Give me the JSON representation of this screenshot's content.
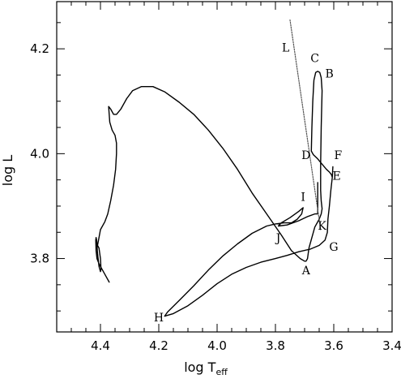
{
  "chart_data": {
    "type": "line",
    "xlabel_main": "log T",
    "xlabel_sub": "eff",
    "ylabel": "log L",
    "xlim": [
      4.55,
      3.4
    ],
    "ylim": [
      3.66,
      4.29
    ],
    "x_ticks": [
      {
        "value": 4.4,
        "label": "4.4"
      },
      {
        "value": 4.2,
        "label": "4.2"
      },
      {
        "value": 4.0,
        "label": "4.0"
      },
      {
        "value": 3.8,
        "label": "3.8"
      },
      {
        "value": 3.6,
        "label": "3.6"
      },
      {
        "value": 3.4,
        "label": "3.4"
      }
    ],
    "y_ticks": [
      {
        "value": 3.8,
        "label": "3.8"
      },
      {
        "value": 4.0,
        "label": "4.0"
      },
      {
        "value": 4.2,
        "label": "4.2"
      }
    ],
    "x_minor_step": 0.05,
    "y_minor_step": 0.05,
    "grid": false,
    "series": [
      {
        "style": "solid",
        "color": "#000000",
        "points": [
          [
            4.37,
            3.755
          ],
          [
            4.39,
            3.775
          ],
          [
            4.405,
            3.79
          ],
          [
            4.412,
            3.8
          ],
          [
            4.415,
            3.815
          ],
          [
            4.416,
            3.835
          ],
          [
            4.415,
            3.84
          ],
          [
            4.413,
            3.835
          ],
          [
            4.41,
            3.81
          ],
          [
            4.405,
            3.785
          ],
          [
            4.4,
            3.775
          ],
          [
            4.398,
            3.78
          ],
          [
            4.4,
            3.8
          ],
          [
            4.405,
            3.82
          ],
          [
            4.41,
            3.825
          ],
          [
            4.405,
            3.84
          ],
          [
            4.4,
            3.855
          ],
          [
            4.385,
            3.87
          ],
          [
            4.375,
            3.885
          ],
          [
            4.365,
            3.91
          ],
          [
            4.355,
            3.94
          ],
          [
            4.348,
            3.97
          ],
          [
            4.345,
            4.0
          ],
          [
            4.345,
            4.02
          ],
          [
            4.35,
            4.035
          ],
          [
            4.36,
            4.045
          ],
          [
            4.368,
            4.06
          ],
          [
            4.37,
            4.075
          ],
          [
            4.372,
            4.09
          ],
          [
            4.365,
            4.085
          ],
          [
            4.355,
            4.075
          ],
          [
            4.345,
            4.075
          ],
          [
            4.33,
            4.085
          ],
          [
            4.31,
            4.105
          ],
          [
            4.29,
            4.12
          ],
          [
            4.26,
            4.128
          ],
          [
            4.22,
            4.128
          ],
          [
            4.18,
            4.118
          ],
          [
            4.13,
            4.098
          ],
          [
            4.08,
            4.075
          ],
          [
            4.03,
            4.045
          ],
          [
            3.98,
            4.01
          ],
          [
            3.93,
            3.97
          ],
          [
            3.88,
            3.925
          ],
          [
            3.83,
            3.885
          ],
          [
            3.78,
            3.845
          ],
          [
            3.745,
            3.815
          ],
          [
            3.715,
            3.8
          ],
          [
            3.7,
            3.795
          ],
          [
            3.695,
            3.795
          ],
          [
            3.69,
            3.8
          ],
          [
            3.685,
            3.82
          ],
          [
            3.675,
            3.84
          ],
          [
            3.665,
            3.86
          ],
          [
            3.65,
            3.875
          ],
          [
            3.643,
            3.885
          ],
          [
            3.64,
            3.895
          ],
          [
            3.643,
            3.91
          ],
          [
            3.645,
            3.93
          ],
          [
            3.645,
            3.98
          ],
          [
            3.643,
            4.05
          ],
          [
            3.64,
            4.12
          ],
          [
            3.643,
            4.145
          ],
          [
            3.648,
            4.155
          ],
          [
            3.655,
            4.157
          ],
          [
            3.662,
            4.155
          ],
          [
            3.668,
            4.14
          ],
          [
            3.672,
            4.1
          ],
          [
            3.675,
            4.05
          ],
          [
            3.677,
            4.005
          ],
          [
            3.67,
            3.998
          ],
          [
            3.655,
            3.99
          ],
          [
            3.64,
            3.98
          ],
          [
            3.625,
            3.97
          ],
          [
            3.615,
            3.965
          ],
          [
            3.608,
            3.96
          ],
          [
            3.605,
            3.955
          ],
          [
            3.603,
            3.975
          ],
          [
            3.605,
            3.955
          ],
          [
            3.61,
            3.93
          ],
          [
            3.615,
            3.9
          ],
          [
            3.62,
            3.875
          ],
          [
            3.622,
            3.85
          ],
          [
            3.63,
            3.835
          ],
          [
            3.65,
            3.825
          ],
          [
            3.68,
            3.818
          ],
          [
            3.72,
            3.813
          ],
          [
            3.76,
            3.806
          ],
          [
            3.8,
            3.8
          ],
          [
            3.85,
            3.793
          ],
          [
            3.9,
            3.783
          ],
          [
            3.95,
            3.77
          ],
          [
            4.0,
            3.752
          ],
          [
            4.05,
            3.73
          ],
          [
            4.1,
            3.71
          ],
          [
            4.15,
            3.695
          ],
          [
            4.18,
            3.69
          ],
          [
            4.17,
            3.698
          ],
          [
            4.13,
            3.72
          ],
          [
            4.08,
            3.748
          ],
          [
            4.03,
            3.778
          ],
          [
            3.98,
            3.805
          ],
          [
            3.93,
            3.828
          ],
          [
            3.88,
            3.848
          ],
          [
            3.83,
            3.862
          ],
          [
            3.8,
            3.866
          ],
          [
            3.77,
            3.868
          ],
          [
            3.745,
            3.868
          ],
          [
            3.725,
            3.875
          ],
          [
            3.71,
            3.885
          ],
          [
            3.705,
            3.897
          ],
          [
            3.72,
            3.89
          ],
          [
            3.75,
            3.878
          ],
          [
            3.78,
            3.868
          ],
          [
            3.79,
            3.862
          ],
          [
            3.76,
            3.864
          ],
          [
            3.72,
            3.872
          ],
          [
            3.69,
            3.88
          ],
          [
            3.665,
            3.885
          ],
          [
            3.655,
            3.885
          ],
          [
            3.655,
            3.915
          ],
          [
            3.655,
            3.945
          ]
        ]
      },
      {
        "style": "dotted",
        "color": "#555555",
        "points": [
          [
            3.75,
            4.255
          ],
          [
            3.645,
            3.855
          ]
        ]
      }
    ],
    "annotations": [
      {
        "text": "L",
        "x": 3.765,
        "y": 4.195
      },
      {
        "text": "C",
        "x": 3.665,
        "y": 4.175
      },
      {
        "text": "B",
        "x": 3.615,
        "y": 4.145
      },
      {
        "text": "D",
        "x": 3.695,
        "y": 3.99
      },
      {
        "text": "F",
        "x": 3.585,
        "y": 3.99
      },
      {
        "text": "E",
        "x": 3.59,
        "y": 3.95
      },
      {
        "text": "I",
        "x": 3.705,
        "y": 3.91
      },
      {
        "text": "K",
        "x": 3.64,
        "y": 3.855
      },
      {
        "text": "J",
        "x": 3.79,
        "y": 3.832
      },
      {
        "text": "G",
        "x": 3.6,
        "y": 3.815
      },
      {
        "text": "A",
        "x": 3.695,
        "y": 3.77
      },
      {
        "text": "H",
        "x": 4.2,
        "y": 3.68
      }
    ]
  }
}
